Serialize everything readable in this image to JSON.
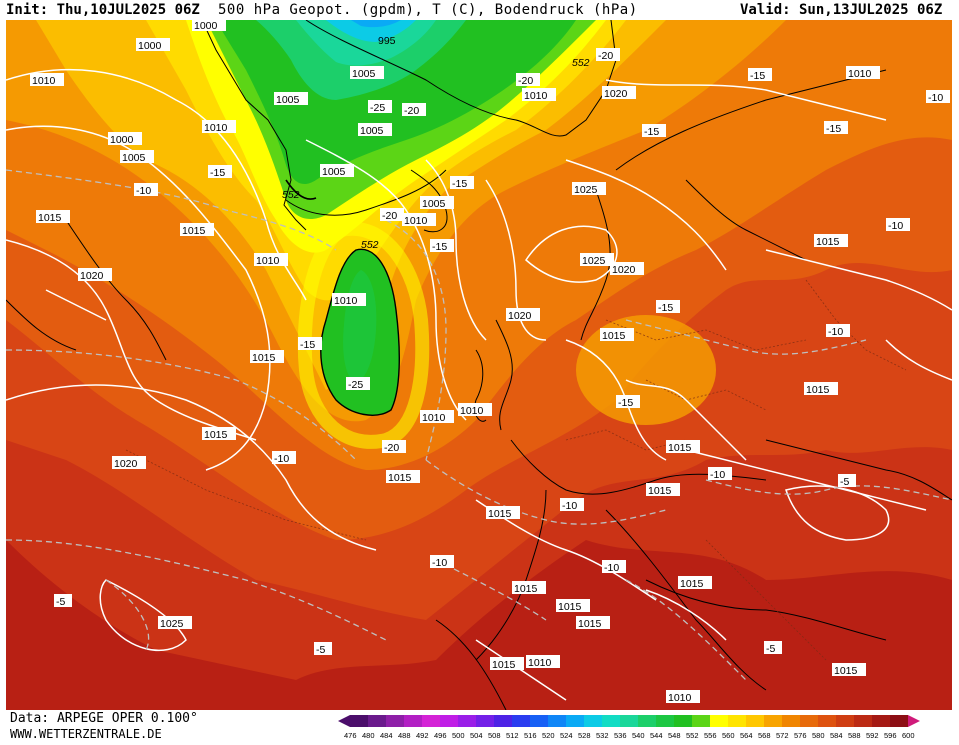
{
  "header": {
    "init": "Init: Thu,10JUL2025 06Z",
    "title": "500 hPa Geopot. (gpdm), T (C), Bodendruck (hPa)",
    "valid": "Valid: Sun,13JUL2025 06Z"
  },
  "footer": {
    "source": "Data: ARPEGE OPER 0.100°",
    "site": "WWW.WETTERZENTRALE.DE"
  },
  "legend": {
    "ticks": [
      "476",
      "480",
      "484",
      "488",
      "492",
      "496",
      "500",
      "504",
      "508",
      "512",
      "516",
      "520",
      "524",
      "528",
      "532",
      "536",
      "540",
      "544",
      "548",
      "552",
      "556",
      "560",
      "564",
      "568",
      "572",
      "576",
      "580",
      "584",
      "588",
      "592",
      "596",
      "600"
    ],
    "colors": [
      "#4b0e6b",
      "#6a1a8c",
      "#8e1fa8",
      "#b21fc4",
      "#d423d6",
      "#c01ee6",
      "#9a1ee8",
      "#7320e8",
      "#4d22e6",
      "#2a3cf0",
      "#1760f5",
      "#0f86f7",
      "#0aaaf5",
      "#0ccbe6",
      "#12dcc4",
      "#1ad79a",
      "#1ccf6a",
      "#1cc743",
      "#21c021",
      "#5cd516",
      "#ffff00",
      "#ffe400",
      "#ffc700",
      "#f8a400",
      "#f08500",
      "#e76a0a",
      "#de520f",
      "#cf3d12",
      "#bc2a14",
      "#a51a14",
      "#8c0e14",
      "#d01a7a"
    ]
  },
  "map": {
    "gpdm_labels": [
      "995",
      "1000",
      "1005",
      "552",
      "552",
      "552"
    ],
    "pressure_labels": [
      "1000",
      "1000",
      "1000",
      "1005",
      "1005",
      "1005",
      "1005",
      "1005",
      "1005",
      "1010",
      "1010",
      "1010",
      "1010",
      "1010",
      "1010",
      "1010",
      "1010",
      "1010",
      "1010",
      "1015",
      "1015",
      "1015",
      "1015",
      "1015",
      "1015",
      "1015",
      "1015",
      "1015",
      "1015",
      "1015",
      "1015",
      "1015",
      "1015",
      "1015",
      "1015",
      "1020",
      "1020",
      "1020",
      "1020",
      "1020",
      "1025",
      "1025",
      "1025",
      "1015",
      "1010"
    ],
    "temp_labels": [
      "-20",
      "-20",
      "-20",
      "-25",
      "-25",
      "-20",
      "-20",
      "-15",
      "-15",
      "-15",
      "-15",
      "-10",
      "-10",
      "-10",
      "-15",
      "-15",
      "-15",
      "-15",
      "-15",
      "-10",
      "-10",
      "-10",
      "-10",
      "-10",
      "-10",
      "-5",
      "-5",
      "-5",
      "-5",
      "-20",
      "-10",
      "-15",
      "-15",
      "-10"
    ]
  }
}
